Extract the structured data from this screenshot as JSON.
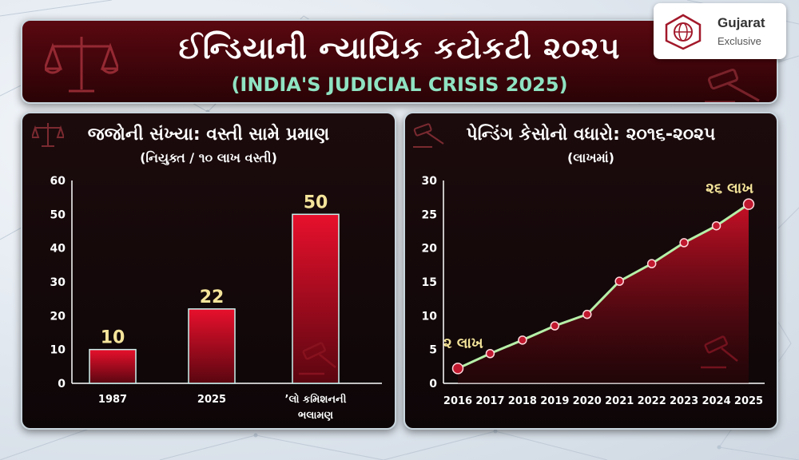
{
  "header": {
    "title": "ઈન્ડિયાની ન્યાયિક કટોકટી ૨૦૨૫",
    "subtitle": "(INDIA'S JUDICIAL CRISIS 2025)"
  },
  "logo": {
    "name": "Gujarat",
    "tagline": "Exclusive"
  },
  "colors": {
    "accent_red": "#e0102a",
    "line_green": "#b6f0a8",
    "label_yellow": "#f4e49a",
    "panel_bg": "#140809"
  },
  "chart_data": [
    {
      "type": "bar",
      "title": "જજોની સંખ્યા: વસ્તી સામે પ્રમાણ",
      "subtitle": "(નિયુક્ત / ૧૦ લાખ વસ્તી)",
      "categories": [
        "1987",
        "2025",
        "’લો કમિશનની ભલામણ"
      ],
      "category_lines": [
        [
          "1987"
        ],
        [
          "2025"
        ],
        [
          "’લો કમિશનની",
          "ભલામણ"
        ]
      ],
      "values": [
        10,
        22,
        50
      ],
      "data_labels": [
        "10",
        "22",
        "50"
      ],
      "ylim": [
        0,
        60
      ],
      "yticks": [
        0,
        10,
        20,
        30,
        40,
        50,
        60
      ],
      "grid": false
    },
    {
      "type": "area",
      "title": "પેન્ડિંગ કેસોનો વધારો: ૨૦૧૬-૨૦૨૫",
      "subtitle": "(લાખમાં)",
      "x": [
        "2016",
        "2017",
        "2018",
        "2019",
        "2020",
        "2021",
        "2022",
        "2023",
        "2024",
        "2025"
      ],
      "values": [
        2.2,
        4.4,
        6.4,
        8.5,
        10.2,
        15.1,
        17.7,
        20.8,
        23.3,
        26.5
      ],
      "annotations": [
        {
          "x": "2016",
          "text": "૨ લાખ"
        },
        {
          "x": "2025",
          "text": "૨૬ લાખ"
        }
      ],
      "ylim": [
        0,
        30
      ],
      "yticks": [
        0,
        5,
        10,
        15,
        20,
        25,
        30
      ],
      "grid": false
    }
  ]
}
